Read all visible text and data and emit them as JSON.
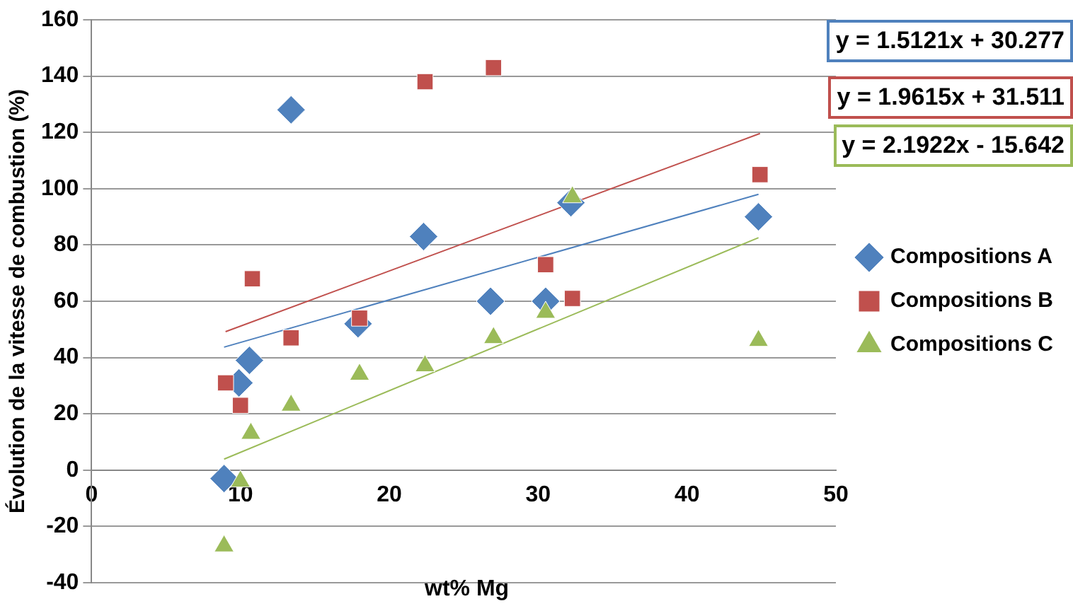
{
  "chart_data": {
    "type": "scatter",
    "xlabel": "wt% Mg",
    "ylabel": "Évolution de la vitesse de combustion (%)",
    "xlim": [
      0,
      50
    ],
    "xticks": [
      0,
      10,
      20,
      30,
      40,
      50
    ],
    "ylim": [
      -40,
      160
    ],
    "yticks": [
      -40,
      -20,
      0,
      20,
      40,
      60,
      80,
      100,
      120,
      140,
      160
    ],
    "grid": "y",
    "legend": "right",
    "annotations": [
      "y = 1.5121x + 30.277",
      "y = 1.9615x + 31.511",
      "y = 2.1922x - 15.642"
    ],
    "series": [
      {
        "name": "Compositions A",
        "color": "#4f81bd",
        "marker": "diamond",
        "x": [
          8.9,
          9.9,
          10.6,
          13.4,
          17.9,
          22.3,
          26.8,
          30.5,
          32.2,
          44.8
        ],
        "values": [
          -3,
          31,
          39,
          128,
          52,
          83,
          60,
          60,
          95,
          90
        ]
      },
      {
        "name": "Compositions B",
        "color": "#c0504d",
        "marker": "square",
        "x": [
          9,
          10,
          10.8,
          13.4,
          18,
          22.4,
          27,
          30.5,
          32.3,
          44.9
        ],
        "values": [
          31,
          23,
          68,
          47,
          54,
          138,
          143,
          73,
          61,
          105
        ]
      },
      {
        "name": "Compositions C",
        "color": "#9bbb59",
        "marker": "triangle",
        "x": [
          8.9,
          10,
          10.7,
          13.4,
          18,
          22.4,
          27,
          30.5,
          32.3,
          44.8
        ],
        "values": [
          -27,
          -4,
          13,
          23,
          34,
          37,
          47,
          56,
          97,
          46
        ]
      },
      {
        "type": "line",
        "color": "#4f81bd",
        "marker": "none",
        "x": [
          8.9,
          44.8
        ],
        "values": [
          43.7,
          98
        ]
      },
      {
        "type": "line",
        "color": "#c0504d",
        "marker": "none",
        "x": [
          9,
          44.9
        ],
        "values": [
          49.2,
          119.6
        ]
      },
      {
        "type": "line",
        "color": "#9bbb59",
        "marker": "none",
        "x": [
          8.9,
          44.8
        ],
        "values": [
          3.9,
          82.6
        ]
      }
    ]
  }
}
